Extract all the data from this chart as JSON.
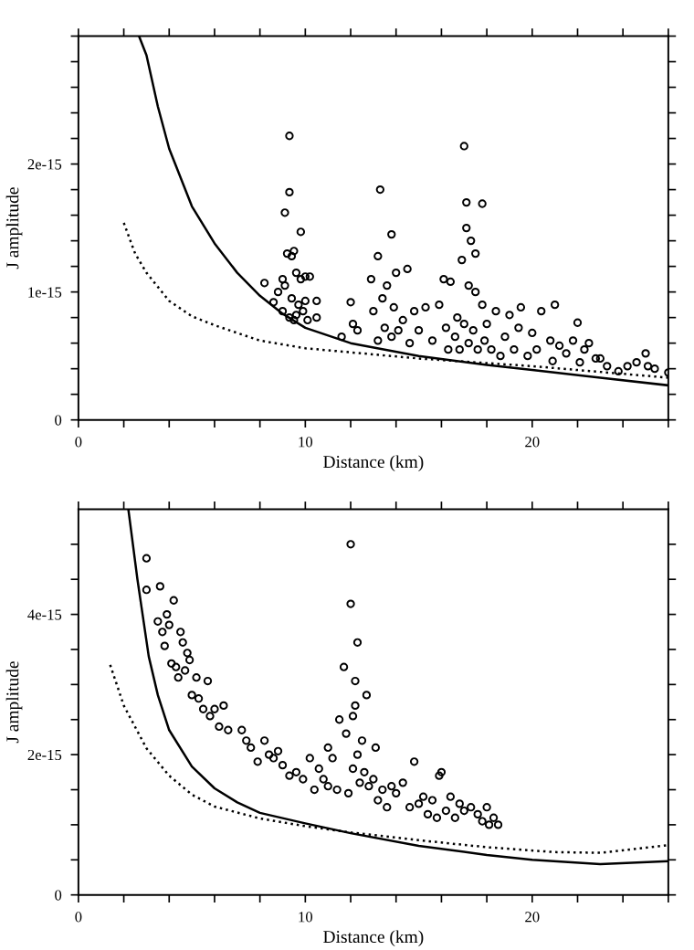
{
  "chart_data": [
    {
      "type": "scatter",
      "xlabel": "Distance (km)",
      "ylabel": "J amplitude",
      "xlim": [
        0,
        26
      ],
      "ylim": [
        0,
        3e-15
      ],
      "xticks": [
        0,
        {
          "value": 2,
          "label": null
        },
        {
          "value": 4,
          "label": null
        },
        {
          "value": 6,
          "label": null
        },
        {
          "value": 8,
          "label": null
        },
        10,
        {
          "value": 12,
          "label": null
        },
        {
          "value": 14,
          "label": null
        },
        {
          "value": 16,
          "label": null
        },
        {
          "value": 18,
          "label": null
        },
        20,
        {
          "value": 22,
          "label": null
        },
        {
          "value": 24,
          "label": null
        },
        {
          "value": 26,
          "label": null
        }
      ],
      "yticks": [
        0,
        {
          "value": 2e-16,
          "label": null
        },
        {
          "value": 4e-16,
          "label": null
        },
        {
          "value": 6e-16,
          "label": null
        },
        {
          "value": 8e-16,
          "label": null
        },
        1e-15,
        {
          "value": 1.2e-15,
          "label": null
        },
        {
          "value": 1.4e-15,
          "label": null
        },
        {
          "value": 1.6e-15,
          "label": null
        },
        {
          "value": 1.8e-15,
          "label": null
        },
        2e-15,
        {
          "value": 2.2e-15,
          "label": null
        },
        {
          "value": 2.4e-15,
          "label": null
        },
        {
          "value": 2.6e-15,
          "label": null
        },
        {
          "value": 2.8e-15,
          "label": null
        },
        {
          "value": 3e-15,
          "label": null
        }
      ],
      "grid": false,
      "legend": false,
      "marker": "circle",
      "series": [
        {
          "color": "#000000",
          "x": [
            8.2,
            8.6,
            8.8,
            9.0,
            9.1,
            9.1,
            9.2,
            9.3,
            9.3,
            9.3,
            9.4,
            9.4,
            9.5,
            9.5,
            9.6,
            9.7,
            9.8,
            9.8,
            9.9,
            10.0,
            10.0,
            10.1,
            10.2,
            10.5,
            10.5,
            9.0,
            9.6,
            11.6,
            12.0,
            12.1,
            12.3,
            12.9,
            13.0,
            13.2,
            13.2,
            13.3,
            13.4,
            13.5,
            13.6,
            13.8,
            13.8,
            13.9,
            14.0,
            14.1,
            14.3,
            14.5,
            14.6,
            14.8,
            15.0,
            15.3,
            15.6,
            15.9,
            16.1,
            16.2,
            16.3,
            16.4,
            16.6,
            16.7,
            16.8,
            16.9,
            17.0,
            17.0,
            17.1,
            17.1,
            17.2,
            17.2,
            17.3,
            17.4,
            17.5,
            17.5,
            17.6,
            17.8,
            17.8,
            17.9,
            18.0,
            18.2,
            18.4,
            18.6,
            18.8,
            19.0,
            19.2,
            19.4,
            19.5,
            19.8,
            20.0,
            20.2,
            20.4,
            20.8,
            20.9,
            21.0,
            21.2,
            21.5,
            21.8,
            22.0,
            22.1,
            22.3,
            22.5,
            22.8,
            23.0,
            23.3,
            23.8,
            24.2,
            24.6,
            25.0,
            25.1,
            25.4,
            26.0
          ],
          "values": [
            1.07e-15,
            9.2e-16,
            1e-15,
            8.5e-16,
            1.62e-15,
            1.05e-15,
            1.3e-15,
            2.22e-15,
            1.78e-15,
            8e-16,
            1.28e-15,
            9.5e-16,
            1.32e-15,
            7.8e-16,
            1.15e-15,
            9e-16,
            1.47e-15,
            1.1e-15,
            8.5e-16,
            1.12e-15,
            9.3e-16,
            7.8e-16,
            1.12e-15,
            9.3e-16,
            8e-16,
            1.1e-15,
            8.2e-16,
            6.5e-16,
            9.2e-16,
            7.5e-16,
            7e-16,
            1.1e-15,
            8.5e-16,
            1.28e-15,
            6.2e-16,
            1.8e-15,
            9.5e-16,
            7.2e-16,
            1.05e-15,
            1.45e-15,
            6.5e-16,
            8.8e-16,
            1.15e-15,
            7e-16,
            7.8e-16,
            1.18e-15,
            6e-16,
            8.5e-16,
            7e-16,
            8.8e-16,
            6.2e-16,
            9e-16,
            1.1e-15,
            7.2e-16,
            5.5e-16,
            1.08e-15,
            6.5e-16,
            8e-16,
            5.5e-16,
            1.25e-15,
            2.14e-15,
            7.5e-16,
            1.7e-15,
            1.5e-15,
            1.05e-15,
            6e-16,
            1.4e-15,
            7e-16,
            1.3e-15,
            1e-15,
            5.5e-16,
            1.69e-15,
            9e-16,
            6.2e-16,
            7.5e-16,
            5.5e-16,
            8.5e-16,
            5e-16,
            6.5e-16,
            8.2e-16,
            5.5e-16,
            7.2e-16,
            8.8e-16,
            5e-16,
            6.8e-16,
            5.5e-16,
            8.5e-16,
            6.2e-16,
            4.6e-16,
            9e-16,
            5.8e-16,
            5.2e-16,
            6.2e-16,
            7.6e-16,
            4.5e-16,
            5.5e-16,
            6e-16,
            4.8e-16,
            4.8e-16,
            4.2e-16,
            3.8e-16,
            4.2e-16,
            4.5e-16,
            5.2e-16,
            4.2e-16,
            4e-16,
            3.7e-16
          ]
        },
        {
          "type": "line",
          "color": "#000000",
          "line_style": "solid",
          "marker": "none",
          "x": [
            2.67,
            3.0,
            3.5,
            4,
            5,
            6,
            7,
            8,
            9,
            10,
            12,
            15,
            18,
            20,
            23,
            26
          ],
          "values": [
            3e-15,
            2.85e-15,
            2.45e-15,
            2.12e-15,
            1.67e-15,
            1.38e-15,
            1.15e-15,
            9.7e-16,
            8.3e-16,
            7.2e-16,
            6e-16,
            5e-16,
            4.3e-16,
            3.9e-16,
            3.3e-16,
            2.7e-16
          ]
        },
        {
          "type": "line",
          "color": "#000000",
          "line_style": "dotted",
          "marker": "none",
          "x": [
            2,
            2.5,
            3,
            4,
            5,
            6,
            8,
            10,
            15,
            20,
            26
          ],
          "values": [
            1.54e-15,
            1.3e-15,
            1.15e-15,
            9.3e-16,
            8.1e-16,
            7.4e-16,
            6.2e-16,
            5.6e-16,
            4.8e-16,
            4.2e-16,
            3.3e-16
          ]
        }
      ]
    },
    {
      "type": "scatter",
      "xlabel": "Distance (km)",
      "ylabel": "J amplitude",
      "xlim": [
        0,
        26
      ],
      "ylim": [
        0,
        5.5e-15
      ],
      "xticks": [
        0,
        {
          "value": 2,
          "label": null
        },
        {
          "value": 4,
          "label": null
        },
        {
          "value": 6,
          "label": null
        },
        {
          "value": 8,
          "label": null
        },
        10,
        {
          "value": 12,
          "label": null
        },
        {
          "value": 14,
          "label": null
        },
        {
          "value": 16,
          "label": null
        },
        {
          "value": 18,
          "label": null
        },
        20,
        {
          "value": 22,
          "label": null
        },
        {
          "value": 24,
          "label": null
        },
        {
          "value": 26,
          "label": null
        }
      ],
      "yticks": [
        0,
        {
          "value": 5e-16,
          "label": null
        },
        {
          "value": 1e-15,
          "label": null
        },
        {
          "value": 1.5e-15,
          "label": null
        },
        2e-15,
        {
          "value": 2.5e-15,
          "label": null
        },
        {
          "value": 3e-15,
          "label": null
        },
        {
          "value": 3.5e-15,
          "label": null
        },
        4e-15,
        {
          "value": 4.5e-15,
          "label": null
        },
        {
          "value": 5e-15,
          "label": null
        }
      ],
      "grid": false,
      "legend": false,
      "marker": "circle",
      "series": [
        {
          "color": "#000000",
          "x": [
            3.0,
            3.0,
            3.6,
            3.5,
            3.7,
            3.8,
            3.9,
            4.0,
            4.1,
            4.2,
            4.3,
            4.4,
            4.5,
            4.6,
            4.7,
            4.8,
            4.9,
            5.0,
            5.2,
            5.3,
            5.5,
            5.7,
            5.8,
            6.0,
            6.2,
            6.4,
            6.6,
            7.2,
            7.4,
            7.6,
            7.9,
            8.2,
            8.4,
            8.6,
            8.8,
            9.0,
            9.3,
            9.6,
            9.9,
            10.2,
            10.4,
            10.6,
            10.8,
            11.0,
            11.0,
            11.2,
            11.4,
            11.5,
            11.7,
            11.8,
            11.9,
            12.0,
            12.0,
            12.1,
            12.1,
            12.2,
            12.2,
            12.3,
            12.3,
            12.4,
            12.5,
            12.6,
            12.7,
            12.8,
            13.0,
            13.1,
            13.2,
            13.4,
            13.6,
            13.8,
            14.0,
            14.3,
            14.6,
            14.8,
            15.0,
            15.2,
            15.4,
            15.6,
            15.8,
            15.9,
            16.0,
            16.2,
            16.4,
            16.6,
            16.8,
            17.0,
            17.3,
            17.6,
            17.8,
            18.0,
            18.1,
            18.3,
            18.5
          ],
          "values": [
            4.8e-15,
            4.35e-15,
            4.4e-15,
            3.9e-15,
            3.75e-15,
            3.55e-15,
            4e-15,
            3.85e-15,
            3.3e-15,
            4.2e-15,
            3.25e-15,
            3.1e-15,
            3.75e-15,
            3.6e-15,
            3.2e-15,
            3.45e-15,
            3.35e-15,
            2.85e-15,
            3.1e-15,
            2.8e-15,
            2.65e-15,
            3.05e-15,
            2.55e-15,
            2.65e-15,
            2.4e-15,
            2.7e-15,
            2.35e-15,
            2.35e-15,
            2.2e-15,
            2.1e-15,
            1.9e-15,
            2.2e-15,
            2e-15,
            1.95e-15,
            2.05e-15,
            1.85e-15,
            1.7e-15,
            1.75e-15,
            1.65e-15,
            1.95e-15,
            1.5e-15,
            1.8e-15,
            1.65e-15,
            2.1e-15,
            1.55e-15,
            1.95e-15,
            1.5e-15,
            2.5e-15,
            3.25e-15,
            2.3e-15,
            1.45e-15,
            5e-15,
            4.15e-15,
            2.55e-15,
            1.8e-15,
            3.05e-15,
            2.7e-15,
            3.6e-15,
            2e-15,
            1.6e-15,
            2.2e-15,
            1.75e-15,
            2.85e-15,
            1.55e-15,
            1.65e-15,
            2.1e-15,
            1.35e-15,
            1.5e-15,
            1.25e-15,
            1.55e-15,
            1.45e-15,
            1.6e-15,
            1.25e-15,
            1.9e-15,
            1.3e-15,
            1.4e-15,
            1.15e-15,
            1.35e-15,
            1.1e-15,
            1.7e-15,
            1.75e-15,
            1.2e-15,
            1.4e-15,
            1.1e-15,
            1.3e-15,
            1.2e-15,
            1.25e-15,
            1.15e-15,
            1.05e-15,
            1.25e-15,
            1e-15,
            1.1e-15,
            1e-15
          ]
        },
        {
          "type": "line",
          "color": "#000000",
          "line_style": "solid",
          "marker": "none",
          "x": [
            2.2,
            2.6,
            3.1,
            3.5,
            4,
            5,
            6,
            7,
            8,
            10,
            12,
            15,
            18,
            20,
            23,
            26
          ],
          "values": [
            5.5e-15,
            4.5e-15,
            3.4e-15,
            2.85e-15,
            2.35e-15,
            1.83e-15,
            1.52e-15,
            1.32e-15,
            1.17e-15,
            1.02e-15,
            8.8e-16,
            7e-16,
            5.7e-16,
            5e-16,
            4.4e-16,
            4.8e-16
          ]
        },
        {
          "type": "line",
          "color": "#000000",
          "line_style": "dotted",
          "marker": "none",
          "x": [
            1.4,
            2,
            3,
            4,
            5,
            6,
            8,
            10,
            12,
            15,
            18,
            21,
            23,
            26
          ],
          "values": [
            3.28e-15,
            2.7e-15,
            2.09e-15,
            1.7e-15,
            1.43e-15,
            1.26e-15,
            1.09e-15,
            9.8e-16,
            8.9e-16,
            7.8e-16,
            6.8e-16,
            6.1e-16,
            6e-16,
            7.1e-16
          ]
        }
      ]
    }
  ]
}
